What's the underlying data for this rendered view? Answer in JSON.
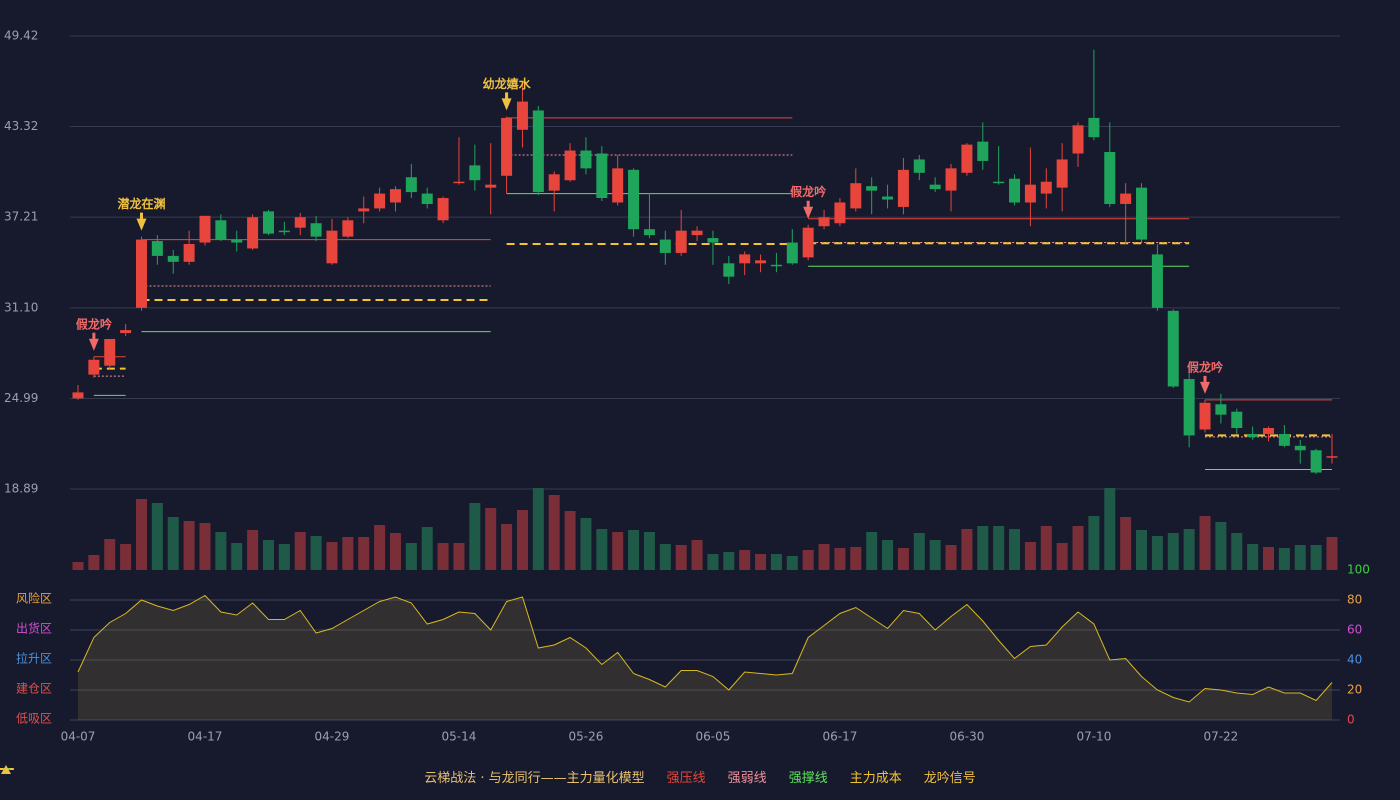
{
  "chart_data": {
    "type": "candlestick",
    "categories": [
      "04-07",
      null,
      null,
      null,
      null,
      null,
      null,
      null,
      "04-17",
      null,
      null,
      null,
      null,
      null,
      null,
      null,
      "04-29",
      null,
      null,
      null,
      null,
      null,
      null,
      null,
      "05-14",
      null,
      null,
      null,
      null,
      null,
      null,
      null,
      "05-26",
      null,
      null,
      null,
      null,
      null,
      null,
      null,
      "06-05",
      null,
      null,
      null,
      null,
      null,
      null,
      null,
      "06-17",
      null,
      null,
      null,
      null,
      null,
      null,
      null,
      "06-30",
      null,
      null,
      null,
      null,
      null,
      null,
      null,
      "07-10",
      null,
      null,
      null,
      null,
      null,
      null,
      null,
      "07-22",
      null,
      null,
      null,
      null,
      null,
      null,
      null
    ],
    "open": [
      25.0,
      26.6,
      27.2,
      29.4,
      31.1,
      35.6,
      34.6,
      34.2,
      35.5,
      37.0,
      35.7,
      35.1,
      37.6,
      36.3,
      36.5,
      36.8,
      34.1,
      35.9,
      37.6,
      37.8,
      38.2,
      39.9,
      38.8,
      37.0,
      39.5,
      40.7,
      39.2,
      40.0,
      43.1,
      44.4,
      39.0,
      39.7,
      41.7,
      41.5,
      38.2,
      40.4,
      36.4,
      35.7,
      34.8,
      36.0,
      35.8,
      34.1,
      34.1,
      34.1,
      34.0,
      35.5,
      34.5,
      36.6,
      36.8,
      37.8,
      39.3,
      38.6,
      37.9,
      41.1,
      39.4,
      39.0,
      40.2,
      42.3,
      39.6,
      39.8,
      38.2,
      38.8,
      39.2,
      41.5,
      43.9,
      41.6,
      38.1,
      39.2,
      34.7,
      30.9,
      26.3,
      22.9,
      24.6,
      24.1,
      22.6,
      22.6,
      22.6,
      21.8,
      21.5,
      21.0
    ],
    "high": [
      25.9,
      27.8,
      29.0,
      30.0,
      35.9,
      36.0,
      35.0,
      36.3,
      37.3,
      37.4,
      36.3,
      37.4,
      37.7,
      36.9,
      37.5,
      37.3,
      37.1,
      37.2,
      38.6,
      39.2,
      39.3,
      40.8,
      39.2,
      38.6,
      42.6,
      42.1,
      42.2,
      44.0,
      46.3,
      44.7,
      40.3,
      42.2,
      42.6,
      42.0,
      41.4,
      40.5,
      38.8,
      36.3,
      37.7,
      36.6,
      36.3,
      34.6,
      34.9,
      34.7,
      34.8,
      36.4,
      36.7,
      37.7,
      38.5,
      40.5,
      39.9,
      39.4,
      41.2,
      41.4,
      39.9,
      40.8,
      42.2,
      43.6,
      42.0,
      40.1,
      41.9,
      40.5,
      42.2,
      43.6,
      48.5,
      43.6,
      39.5,
      39.5,
      35.4,
      31.0,
      27.0,
      24.9,
      25.3,
      24.3,
      23.1,
      23.1,
      23.2,
      22.2,
      21.6,
      22.6
    ],
    "low": [
      24.9,
      26.4,
      27.0,
      29.2,
      30.9,
      34.0,
      33.4,
      34.0,
      35.3,
      35.6,
      34.9,
      35.0,
      36.0,
      36.0,
      36.0,
      35.6,
      34.0,
      35.8,
      36.8,
      37.6,
      37.6,
      38.5,
      37.8,
      36.8,
      39.4,
      39.0,
      37.4,
      38.8,
      41.9,
      38.7,
      37.6,
      39.6,
      40.1,
      38.3,
      38.0,
      35.9,
      35.8,
      34.0,
      34.6,
      35.6,
      34.0,
      32.7,
      33.3,
      33.5,
      33.5,
      34.0,
      34.3,
      36.4,
      36.6,
      37.6,
      37.4,
      37.8,
      37.4,
      39.7,
      38.9,
      37.6,
      40.0,
      40.4,
      39.4,
      38.0,
      36.6,
      37.8,
      37.6,
      40.6,
      42.4,
      37.9,
      35.4,
      35.5,
      30.9,
      25.7,
      21.7,
      22.7,
      23.3,
      22.6,
      22.2,
      22.1,
      21.7,
      20.6,
      19.9,
      20.6
    ],
    "close": [
      25.4,
      27.6,
      29.0,
      29.6,
      35.7,
      34.6,
      34.2,
      35.4,
      37.3,
      35.7,
      35.5,
      37.2,
      36.1,
      36.2,
      37.2,
      35.9,
      36.3,
      37.0,
      37.8,
      38.8,
      39.1,
      38.9,
      38.1,
      38.5,
      39.6,
      39.7,
      39.4,
      43.9,
      45.0,
      38.9,
      40.1,
      41.7,
      40.5,
      38.5,
      40.5,
      36.4,
      36.0,
      34.8,
      36.3,
      36.3,
      35.5,
      33.2,
      34.7,
      34.3,
      33.9,
      34.1,
      36.5,
      37.2,
      38.2,
      39.5,
      39.0,
      38.4,
      40.4,
      40.2,
      39.1,
      40.5,
      42.1,
      41.0,
      39.5,
      38.2,
      39.4,
      39.6,
      41.1,
      43.4,
      42.6,
      38.1,
      38.8,
      35.7,
      31.1,
      25.8,
      22.5,
      24.7,
      23.9,
      23.0,
      22.4,
      23.0,
      21.8,
      21.5,
      20.0,
      21.1
    ],
    "volume": [
      8,
      15,
      31,
      26,
      71,
      67,
      53,
      49,
      47,
      38,
      27,
      40,
      30,
      26,
      38,
      34,
      28,
      33,
      33,
      45,
      37,
      27,
      43,
      27,
      27,
      67,
      62,
      46,
      60,
      82,
      75,
      59,
      52,
      41,
      38,
      40,
      38,
      26,
      25,
      30,
      16,
      18,
      20,
      16,
      16,
      14,
      20,
      26,
      22,
      23,
      38,
      30,
      22,
      37,
      30,
      25,
      41,
      44,
      44,
      41,
      28,
      44,
      27,
      44,
      54,
      82,
      53,
      40,
      34,
      37,
      41,
      54,
      48,
      37,
      26,
      23,
      22,
      25,
      25,
      33
    ],
    "up_color": "#e8453c",
    "down_color": "#1fa55b",
    "ylim": [
      18.89,
      49.42
    ],
    "yticks": [
      18.89,
      24.99,
      {
        "value": 31.1,
        "label": "31.10"
      },
      37.21,
      43.32,
      49.42
    ],
    "grid": true,
    "level_series": [
      {
        "name": "强压线",
        "color": "#e8453c",
        "dash": "none"
      },
      {
        "name": "强弱线",
        "color": "#f0909c",
        "dash": "2,2"
      },
      {
        "name": "强撑线",
        "color": "#5ee05e",
        "dash": "none"
      },
      {
        "name": "主力成本",
        "color": "#f4c430",
        "dash": "8,5"
      }
    ],
    "level_segments": [
      {
        "start": 1,
        "end": 3,
        "values": [
          27.8,
          26.5,
          25.2,
          27.0
        ]
      },
      {
        "start": 4,
        "end": 26,
        "values": [
          35.7,
          32.57,
          29.5,
          31.63
        ]
      },
      {
        "start": 27,
        "end": 45,
        "values": [
          43.9,
          41.4,
          38.8,
          35.4
        ]
      },
      {
        "start": 46,
        "end": 70,
        "values": [
          37.1,
          35.5,
          33.9,
          35.45
        ]
      },
      {
        "start": 71,
        "end": 79,
        "values": [
          24.9,
          22.4,
          20.2,
          22.5
        ]
      }
    ],
    "signals": [
      {
        "index": 1,
        "label": "假龙吟",
        "color": "#f06a6a"
      },
      {
        "index": 4,
        "label": "潜龙在渊",
        "color": "#f0c040"
      },
      {
        "index": 27,
        "label": "幼龙嬉水",
        "color": "#f0c040"
      },
      {
        "index": 46,
        "label": "假龙吟",
        "color": "#f06a6a"
      },
      {
        "index": 71,
        "label": "假龙吟",
        "color": "#f06a6a"
      }
    ],
    "signal_legend": {
      "name": "龙吟信号",
      "color": "#f0c040"
    },
    "legend_title": "云梯战法 · 与龙同行——主力量化模型",
    "indicator": {
      "values": [
        32,
        55,
        65,
        71,
        80,
        76,
        73,
        77,
        83,
        72,
        70,
        78,
        67,
        67,
        73,
        58,
        61,
        67,
        73,
        79,
        82,
        78,
        64,
        67,
        72,
        71,
        60,
        79,
        82,
        48,
        50,
        55,
        48,
        37,
        45,
        31,
        27,
        22,
        33,
        33,
        29,
        20,
        32,
        31,
        30,
        31,
        55,
        63,
        71,
        75,
        68,
        61,
        73,
        71,
        60,
        69,
        77,
        66,
        53,
        41,
        49,
        50,
        62,
        72,
        64,
        40,
        41,
        29,
        20,
        15,
        12,
        21,
        20,
        18,
        17,
        22,
        18,
        18,
        13,
        25
      ],
      "color": "#d8b820",
      "ylim": [
        0,
        100
      ],
      "yticks": [
        0,
        20,
        40,
        60,
        80,
        100
      ],
      "ytick_colors": [
        "#e84848",
        "#e8a040",
        "#4a90e0",
        "#d050d0",
        "#e8a040",
        "#3ad03a"
      ],
      "zones": [
        {
          "label": "风险区",
          "value": 80,
          "color": "#e8a040"
        },
        {
          "label": "出货区",
          "value": 60,
          "color": "#d050d0"
        },
        {
          "label": "拉升区",
          "value": 40,
          "color": "#4a90e0"
        },
        {
          "label": "建仓区",
          "value": 20,
          "color": "#e05050"
        },
        {
          "label": "低吸区",
          "value": 0,
          "color": "#e05050"
        }
      ]
    }
  }
}
